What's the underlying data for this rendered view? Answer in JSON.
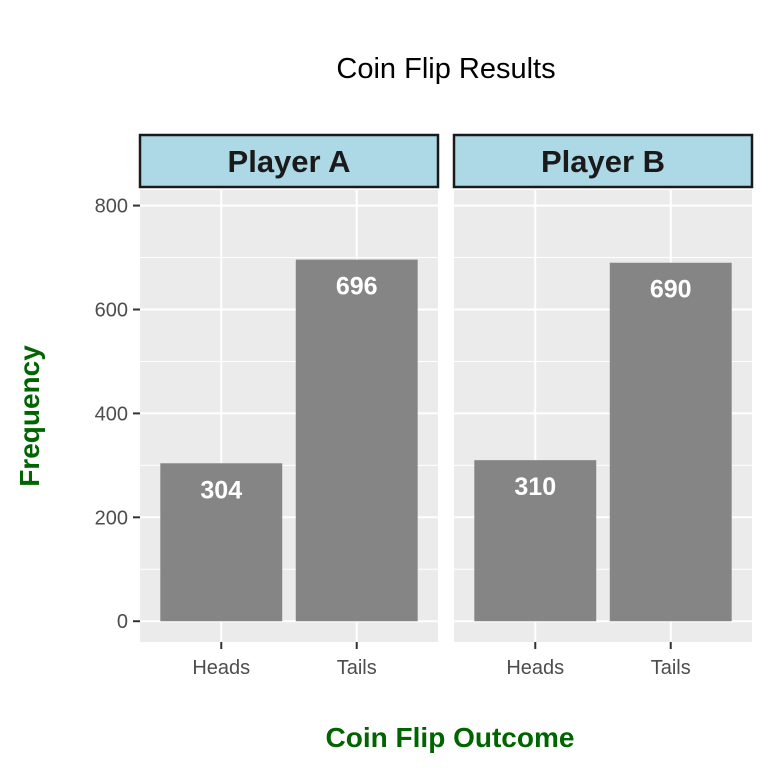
{
  "chart_data": {
    "type": "bar",
    "title": "Coin Flip Results",
    "xlabel": "Coin Flip Outcome",
    "ylabel": "Frequency",
    "ylim": [
      -40,
      830
    ],
    "yticks": [
      0,
      200,
      400,
      600,
      800
    ],
    "grid": true,
    "categories": [
      "Heads",
      "Tails"
    ],
    "panels": [
      {
        "name": "Player A",
        "values": [
          304,
          696
        ]
      },
      {
        "name": "Player B",
        "values": [
          310,
          690
        ]
      }
    ]
  },
  "colors": {
    "bar": "#858585",
    "panel_bg": "#ebebeb",
    "grid": "#ffffff",
    "strip_bg": "#add8e6",
    "strip_border": "#1a1a1a",
    "axis_title": "#006400",
    "tick": "#333333"
  }
}
